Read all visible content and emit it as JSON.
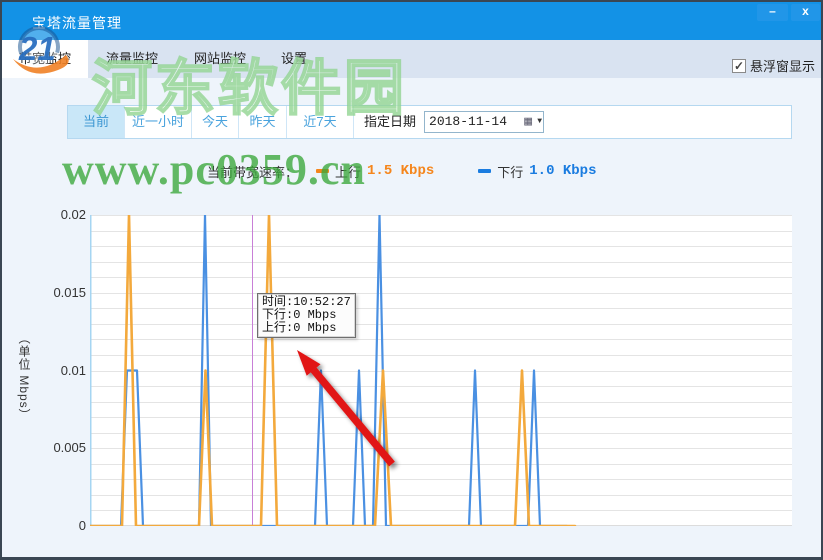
{
  "window": {
    "title": "宝塔流量管理",
    "minimize_glyph": "–",
    "close_glyph": "x"
  },
  "watermark": {
    "logo_text": "21",
    "site_name": "河东软件园",
    "site_url": "www.pc0359.cn"
  },
  "icons": {
    "calendar_glyph": "▦",
    "dropdown_glyph": "▼",
    "check_glyph": "✓"
  },
  "tabs": [
    {
      "label": "带宽监控",
      "active": true
    },
    {
      "label": "流量监控",
      "active": false
    },
    {
      "label": "网站监控",
      "active": false
    },
    {
      "label": "设置",
      "active": false
    }
  ],
  "overlay_checkbox": {
    "label": "悬浮窗显示",
    "checked": true
  },
  "filters": {
    "buttons": [
      {
        "label": "当前",
        "active": true
      },
      {
        "label": "近一小时",
        "active": false
      },
      {
        "label": "今天",
        "active": false
      },
      {
        "label": "昨天",
        "active": false
      },
      {
        "label": "近7天",
        "active": false
      }
    ],
    "date_label": "指定日期",
    "date_value": "2018-11-14"
  },
  "legend": {
    "prefix": "当前带宽速率：",
    "up_label": "上行",
    "up_value": "1.5 Kbps",
    "down_label": "下行",
    "down_value": "1.0 Kbps",
    "up_color": "#f5861c",
    "down_color": "#1a7ce0"
  },
  "tooltip": {
    "lines": [
      "时间:10:52:27",
      "下行:0 Mbps",
      "上行:0 Mbps"
    ]
  },
  "chart_data": {
    "type": "line",
    "title": "",
    "xlabel": "",
    "ylabel": "（单位 Mbps）",
    "ylim": [
      0,
      0.02
    ],
    "yticks": [
      0,
      0.005,
      0.01,
      0.015,
      0.02
    ],
    "ytick_labels": [
      "0",
      "0.005",
      "0.01",
      "0.015",
      "0.02"
    ],
    "minor_grid_step": 0.001,
    "grid": true,
    "legend_position": "top-center",
    "x_axis_note": "time axis, no tick labels shown; data stops ~69% across plot",
    "cursor_line_x_frac": 0.2308,
    "cursor_line_color": "#c87fd7",
    "series": [
      {
        "name": "上行",
        "color": "#f3a93c",
        "points": [
          [
            0,
            0
          ],
          [
            0.0456,
            0
          ],
          [
            0.0556,
            0.02
          ],
          [
            0.0655,
            0
          ],
          [
            0.1553,
            0
          ],
          [
            0.1645,
            0.01
          ],
          [
            0.1738,
            0
          ],
          [
            0.2436,
            0
          ],
          [
            0.255,
            0.02
          ],
          [
            0.2664,
            0
          ],
          [
            0.406,
            0
          ],
          [
            0.4174,
            0.01
          ],
          [
            0.4288,
            0
          ],
          [
            0.6054,
            0
          ],
          [
            0.6154,
            0.01
          ],
          [
            0.6254,
            0
          ],
          [
            0.6909,
            0
          ]
        ]
      },
      {
        "name": "下行",
        "color": "#4a90e2",
        "points": [
          [
            0,
            0
          ],
          [
            0.0442,
            0
          ],
          [
            0.0527,
            0.01
          ],
          [
            0.067,
            0.01
          ],
          [
            0.0755,
            0
          ],
          [
            0.1553,
            0
          ],
          [
            0.1638,
            0.02
          ],
          [
            0.1724,
            0
          ],
          [
            0.3205,
            0
          ],
          [
            0.3291,
            0.01
          ],
          [
            0.3376,
            0
          ],
          [
            0.3746,
            0
          ],
          [
            0.3832,
            0.01
          ],
          [
            0.3917,
            0
          ],
          [
            0.4031,
            0
          ],
          [
            0.4124,
            0.02
          ],
          [
            0.4217,
            0
          ],
          [
            0.5399,
            0
          ],
          [
            0.5484,
            0.01
          ],
          [
            0.557,
            0
          ],
          [
            0.6239,
            0
          ],
          [
            0.6325,
            0.01
          ],
          [
            0.641,
            0
          ],
          [
            0.6795,
            0
          ]
        ]
      }
    ]
  }
}
